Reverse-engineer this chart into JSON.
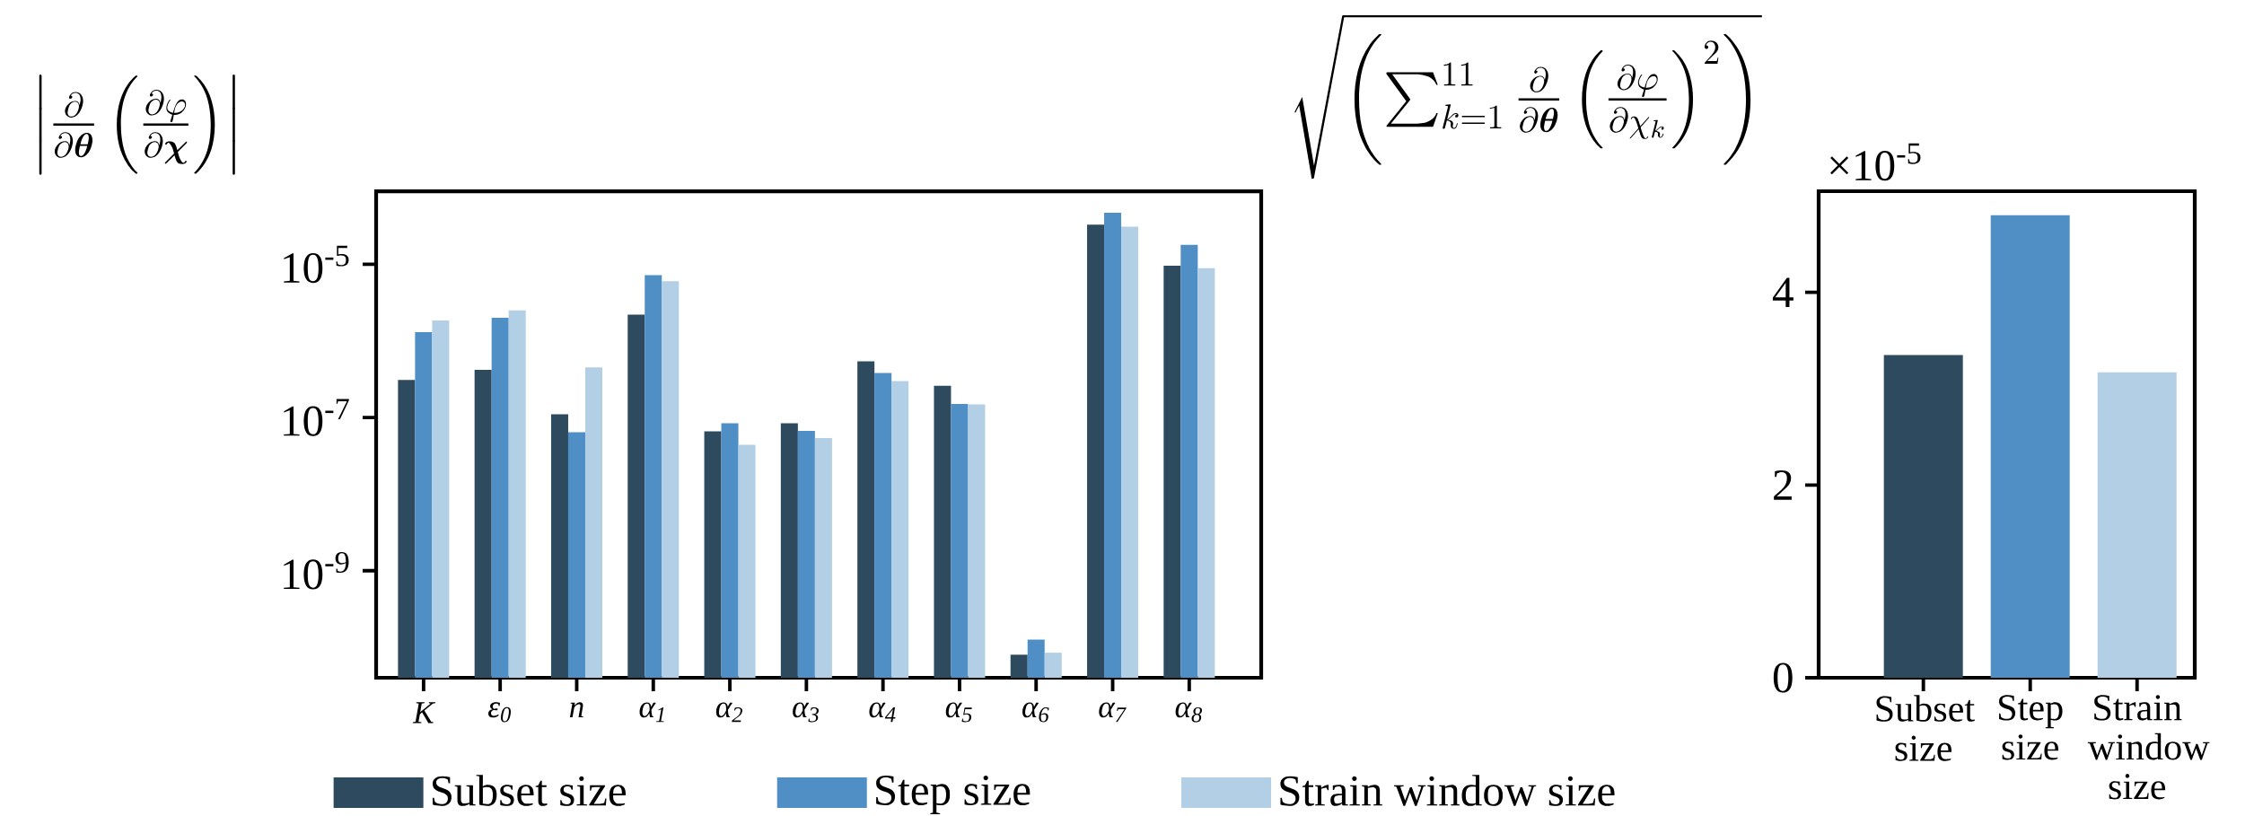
{
  "chart_data": [
    {
      "type": "bar",
      "title": "\\left|\\frac{\\partial}{\\partial\\boldsymbol{\\theta}}\\left(\\frac{\\partial\\varphi}{\\partial\\boldsymbol{\\chi}}\\right)\\right|",
      "categories": [
        "K",
        "ε$_{0}$",
        "n",
        "α$_{1}$",
        "α$_{2}$",
        "α$_{3}$",
        "α$_{4}$",
        "α$_{5}$",
        "α$_{6}$",
        "α$_{7}$",
        "α$_{8}$"
      ],
      "series": [
        {
          "name": "Subset size",
          "color": "#2e4a5f",
          "values": [
            3.1e-07,
            4.2e-07,
            1.1e-07,
            2.2e-06,
            6.6e-08,
            8.4e-08,
            5.4e-07,
            2.6e-07,
            8e-11,
            3.3e-05,
            9.6e-06
          ]
        },
        {
          "name": "Step size",
          "color": "#4f8fc6",
          "values": [
            1.3e-06,
            2e-06,
            6.4e-08,
            7.2e-06,
            8.4e-08,
            6.7e-08,
            3.8e-07,
            1.5e-07,
            1.26e-10,
            4.7e-05,
            1.8e-05
          ]
        },
        {
          "name": "Strain window size",
          "color": "#b3cfe6",
          "values": [
            1.85e-06,
            2.5e-06,
            4.5e-07,
            6e-06,
            4.4e-08,
            5.4e-08,
            3e-07,
            1.48e-07,
            8.5e-11,
            3.1e-05,
            8.9e-06
          ]
        }
      ],
      "log": "y",
      "ylim": [
        4e-11,
        9e-05
      ],
      "yticks": [
        {
          "value": 1e-09,
          "label": "10$^{-9}$"
        },
        {
          "value": 1e-07,
          "label": "10$^{-7}$"
        },
        {
          "value": 1e-05,
          "label": "10$^{-5}$"
        }
      ],
      "legend": "bottom"
    },
    {
      "type": "bar",
      "title": "\\sqrt{\\left(\\sum_{k=1}^{11}\\frac{\\partial}{\\partial\\boldsymbol{\\theta}}\\left(\\frac{\\partial\\varphi}{\\partial\\chi_k}\\right)^2\\right)}",
      "categories": [
        "Subset size",
        "Step size",
        "Strain window size"
      ],
      "values": [
        3.35,
        4.8,
        3.17
      ],
      "colors": [
        "#2e4a5f",
        "#4f8fc6",
        "#b3cfe6"
      ],
      "ylim": [
        0,
        5.05
      ],
      "yticks": [
        0,
        2,
        4
      ],
      "annotations": [
        "×10$^{-5}$"
      ]
    }
  ]
}
